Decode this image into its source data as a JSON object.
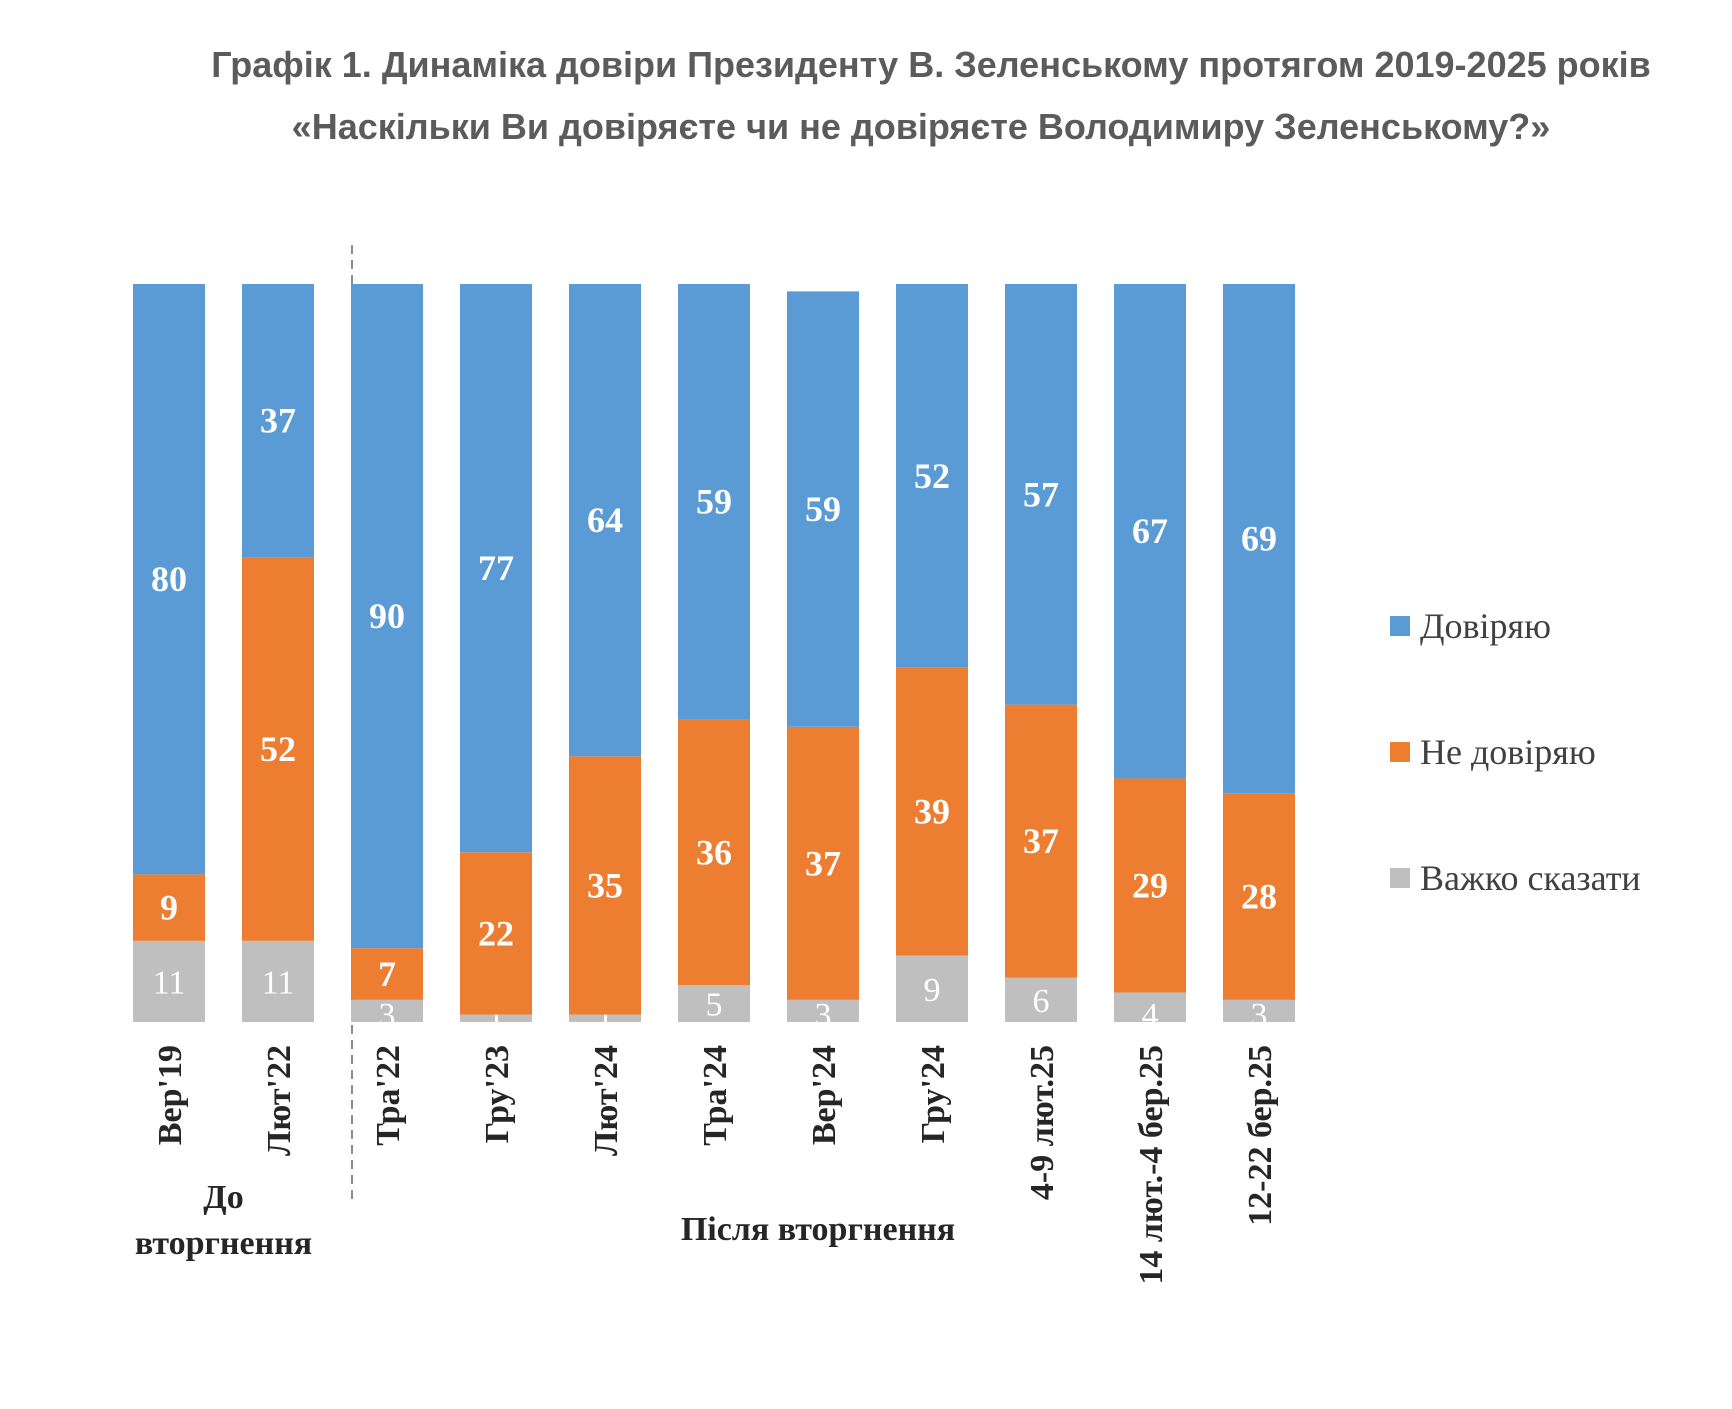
{
  "chart_data": {
    "type": "bar",
    "stacked": true,
    "title": "Графік 1. Динаміка довіри Президенту В. Зеленському протягом 2019-2025 років",
    "subtitle": "«Наскільки Ви довіряєте чи не довіряєте Володимиру Зеленському?»",
    "categories": [
      "Вер'19",
      "Лют'22",
      "Тра'22",
      "Гру'23",
      "Лют'24",
      "Тра'24",
      "Вер'24",
      "Гру'24",
      "4-9 лют.25",
      "14 лют.-4 бер.25",
      "12-22 бер.25"
    ],
    "series": [
      {
        "name": "Довіряю",
        "color": "#5b9bd5",
        "values": [
          80,
          37,
          90,
          77,
          64,
          59,
          59,
          52,
          57,
          67,
          69
        ]
      },
      {
        "name": "Не довіряю",
        "color": "#ed7d31",
        "values": [
          9,
          52,
          7,
          22,
          35,
          36,
          37,
          39,
          37,
          29,
          28
        ]
      },
      {
        "name": "Важко сказати",
        "color": "#bfbfbf",
        "values": [
          11,
          11,
          3,
          1,
          1,
          5,
          3,
          9,
          6,
          4,
          3
        ]
      }
    ],
    "ylim": [
      0,
      100
    ],
    "grid": false,
    "legend": "right",
    "groups": [
      {
        "label": "До вторгнення",
        "categories": [
          "Вер'19",
          "Лют'22"
        ]
      },
      {
        "label": "Після вторгнення",
        "categories": [
          "Тра'22",
          "Гру'23",
          "Лют'24",
          "Тра'24",
          "Вер'24",
          "Гру'24",
          "4-9 лют.25",
          "14 лют.-4 бер.25",
          "12-22 бер.25"
        ]
      }
    ]
  }
}
